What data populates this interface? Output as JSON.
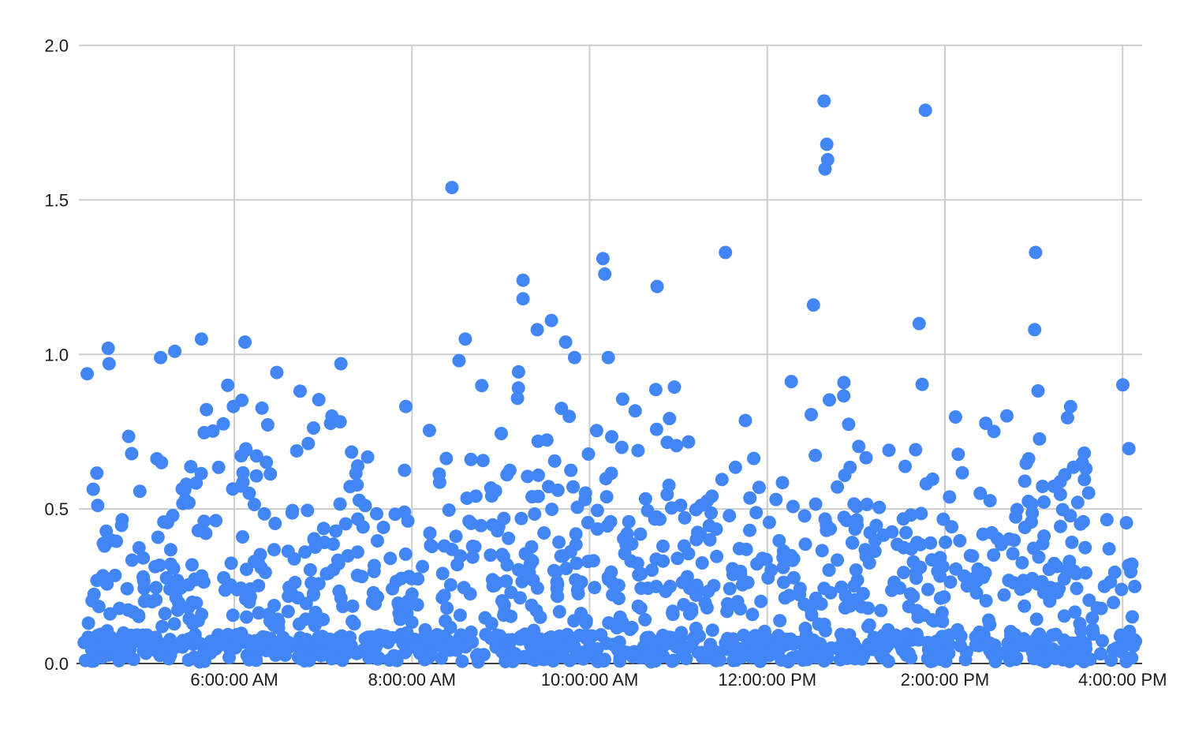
{
  "chart_data": {
    "type": "scatter",
    "title": "",
    "xlabel": "",
    "ylabel": "",
    "legend": "none",
    "grid": "on",
    "x_axis": {
      "unit": "time-of-day",
      "range_hours": [
        4.25,
        16.22
      ],
      "ticks": [
        {
          "hour": 6,
          "label": "6:00:00 AM"
        },
        {
          "hour": 8,
          "label": "8:00:00 AM"
        },
        {
          "hour": 10,
          "label": "10:00:00 AM"
        },
        {
          "hour": 12,
          "label": "12:00:00 PM"
        },
        {
          "hour": 14,
          "label": "2:00:00 PM"
        },
        {
          "hour": 16,
          "label": "4:00:00 PM"
        }
      ]
    },
    "y_axis": {
      "range": [
        0,
        2
      ],
      "ticks": [
        {
          "value": 0.0,
          "label": "0.0"
        },
        {
          "value": 0.5,
          "label": "0.5"
        },
        {
          "value": 1.0,
          "label": "1.0"
        },
        {
          "value": 1.5,
          "label": "1.5"
        },
        {
          "value": 2.0,
          "label": "2.0"
        }
      ]
    },
    "colors": {
      "point": "#4285f4",
      "gridline": "#cccccc",
      "baseline": "#424242",
      "label": "#1b1b1b",
      "background": "#ffffff"
    },
    "style": {
      "point_radius": 8.5,
      "gridline_width": 2,
      "label_font_size": 22
    },
    "points_high": [
      [
        4.58,
        1.02
      ],
      [
        4.59,
        0.97
      ],
      [
        5.17,
        0.99
      ],
      [
        5.33,
        1.01
      ],
      [
        5.63,
        1.05
      ],
      [
        6.12,
        1.04
      ],
      [
        7.2,
        0.97
      ],
      [
        8.45,
        1.54
      ],
      [
        8.53,
        0.98
      ],
      [
        8.6,
        1.05
      ],
      [
        9.25,
        1.24
      ],
      [
        9.25,
        1.18
      ],
      [
        9.41,
        1.08
      ],
      [
        9.57,
        1.11
      ],
      [
        9.73,
        1.04
      ],
      [
        9.83,
        0.99
      ],
      [
        10.15,
        1.31
      ],
      [
        10.17,
        1.26
      ],
      [
        10.21,
        0.99
      ],
      [
        10.76,
        1.22
      ],
      [
        11.53,
        1.33
      ],
      [
        12.52,
        1.16
      ],
      [
        12.64,
        1.82
      ],
      [
        12.67,
        1.68
      ],
      [
        12.68,
        1.63
      ],
      [
        12.65,
        1.6
      ],
      [
        13.71,
        1.1
      ],
      [
        13.78,
        1.79
      ],
      [
        15.01,
        1.08
      ],
      [
        15.02,
        1.33
      ]
    ],
    "dense_point_field": {
      "x_span_hours": [
        4.3,
        16.15
      ],
      "seed": 20240613,
      "bands": [
        {
          "v_range": [
            0.005,
            0.095
          ],
          "count": 620
        },
        {
          "v_range": [
            0.095,
            0.18
          ],
          "count": 120
        },
        {
          "v_range": [
            0.18,
            0.3
          ],
          "count": 220
        },
        {
          "v_range": [
            0.3,
            0.42
          ],
          "count": 160
        },
        {
          "v_range": [
            0.42,
            0.5
          ],
          "count": 90
        },
        {
          "v_range": [
            0.5,
            0.65
          ],
          "count": 100
        },
        {
          "v_range": [
            0.65,
            0.8
          ],
          "count": 55
        },
        {
          "v_range": [
            0.8,
            0.95
          ],
          "count": 30
        }
      ]
    }
  }
}
